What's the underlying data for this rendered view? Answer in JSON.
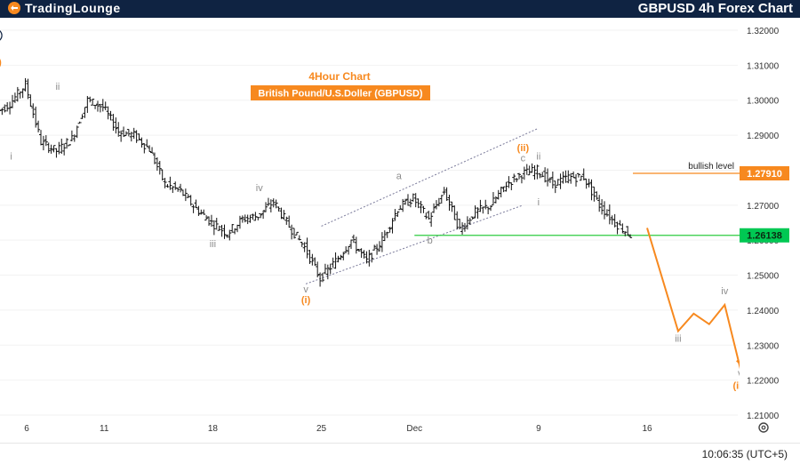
{
  "header": {
    "brand": "TradingLounge",
    "title": "GBPUSD 4h Forex Chart"
  },
  "footer": {
    "time": "10:06:35 (UTC+5)"
  },
  "icons": {
    "logo": "tradinglounge-logo-icon",
    "settings": "gear-icon"
  },
  "colors": {
    "orange": "#f7891f",
    "gray_wave": "#8c8c8c",
    "navy": "#0f2342",
    "support_line": "#2ecc40",
    "support_label": "#00c853"
  },
  "chart_data": {
    "type": "candlestick",
    "symbol": "GBPUSD",
    "timeframe": "4h",
    "annotation_title": "4Hour Chart",
    "annotation_subtitle": "British Pound/U.S.Doller (GBPUSD)",
    "x_ticks": [
      "6",
      "11",
      "18",
      "25",
      "Dec",
      "9",
      "16"
    ],
    "y_ticks": [
      "1.32000",
      "1.31000",
      "1.30000",
      "1.29000",
      "1.28000",
      "1.27000",
      "1.26000",
      "1.25000",
      "1.24000",
      "1.23000",
      "1.22000",
      "1.21000"
    ],
    "ylim": [
      1.2095,
      1.3245
    ],
    "price_points": [
      [
        "Nov 4",
        1.296
      ],
      [
        "Nov 5",
        1.299
      ],
      [
        "Nov 6",
        1.3045
      ],
      [
        "Nov 7",
        1.288
      ],
      [
        "Nov 8",
        1.2855
      ],
      [
        "Nov 9",
        1.289
      ],
      [
        "Nov 10",
        1.3
      ],
      [
        "Nov 11",
        1.298
      ],
      [
        "Nov 12",
        1.291
      ],
      [
        "Nov 13",
        1.29
      ],
      [
        "Nov 14",
        1.286
      ],
      [
        "Nov 15",
        1.276
      ],
      [
        "Nov 16",
        1.274
      ],
      [
        "Nov 17",
        1.269
      ],
      [
        "Nov 18",
        1.265
      ],
      [
        "Nov 19",
        1.262
      ],
      [
        "Nov 20",
        1.266
      ],
      [
        "Nov 21",
        1.267
      ],
      [
        "Nov 22",
        1.271
      ],
      [
        "Nov 23",
        1.264
      ],
      [
        "Nov 24",
        1.258
      ],
      [
        "Nov 25",
        1.249
      ],
      [
        "Nov 26",
        1.254
      ],
      [
        "Nov 27",
        1.26
      ],
      [
        "Nov 28",
        1.254
      ],
      [
        "Nov 29",
        1.26
      ],
      [
        "Nov 30",
        1.269
      ],
      [
        "Dec 1",
        1.272
      ],
      [
        "Dec 2",
        1.266
      ],
      [
        "Dec 3",
        1.274
      ],
      [
        "Dec 4",
        1.263
      ],
      [
        "Dec 5",
        1.268
      ],
      [
        "Dec 6",
        1.27
      ],
      [
        "Dec 7",
        1.276
      ],
      [
        "Dec 8",
        1.279
      ],
      [
        "Dec 9",
        1.28
      ],
      [
        "Dec 10",
        1.276
      ],
      [
        "Dec 11",
        1.278
      ],
      [
        "Dec 12",
        1.278
      ],
      [
        "Dec 13",
        1.27
      ],
      [
        "Dec 14",
        1.265
      ],
      [
        "Dec 15",
        1.2615
      ]
    ],
    "projection": [
      [
        "Dec 16",
        1.2635
      ],
      [
        "Dec 18",
        1.234
      ],
      [
        "Dec 19",
        1.239
      ],
      [
        "Dec 20",
        1.236
      ],
      [
        "Dec 21",
        1.2415
      ],
      [
        "Dec 22",
        1.2235
      ],
      [
        "Dec 23",
        1.226
      ]
    ],
    "channel": {
      "upper": [
        [
          "Nov 25",
          1.264
        ],
        [
          "Dec 9",
          1.292
        ]
      ],
      "lower": [
        [
          "Nov 24",
          1.2475
        ],
        [
          "Dec 8",
          1.27
        ]
      ]
    },
    "levels": [
      {
        "name": "bullish level",
        "value": 1.2791,
        "label": "1.27910",
        "color": "#f7891f"
      },
      {
        "name": "support",
        "value": 1.26138,
        "label": "1.26138",
        "color": "#00c853"
      }
    ],
    "bullish_level_text": "bullish level",
    "wave_labels": [
      {
        "text": "ii",
        "at": [
          "Nov 4",
          1.3175
        ],
        "style": "circled-navy"
      },
      {
        "text": "(c)",
        "at": [
          "Nov 4",
          1.31
        ],
        "style": "orange"
      },
      {
        "text": "ii",
        "at": [
          "Nov 8",
          1.303
        ],
        "style": "gray"
      },
      {
        "text": "i",
        "at": [
          "Nov 5",
          1.283
        ],
        "style": "gray"
      },
      {
        "text": "iv",
        "at": [
          "Nov 21",
          1.274
        ],
        "style": "gray"
      },
      {
        "text": "iii",
        "at": [
          "Nov 18",
          1.258
        ],
        "style": "gray"
      },
      {
        "text": "v",
        "at": [
          "Nov 24",
          1.245
        ],
        "style": "gray"
      },
      {
        "text": "(i)",
        "at": [
          "Nov 24",
          1.242
        ],
        "style": "orange"
      },
      {
        "text": "a",
        "at": [
          "Nov 30",
          1.2775
        ],
        "style": "gray"
      },
      {
        "text": "b",
        "at": [
          "Dec 2",
          1.259
        ],
        "style": "gray"
      },
      {
        "text": "(ii)",
        "at": [
          "Dec 8",
          1.2855
        ],
        "style": "orange"
      },
      {
        "text": "c",
        "at": [
          "Dec 8",
          1.2825
        ],
        "style": "gray"
      },
      {
        "text": "ii",
        "at": [
          "Dec 9",
          1.283
        ],
        "style": "gray"
      },
      {
        "text": "i",
        "at": [
          "Dec 9",
          1.27
        ],
        "style": "gray"
      },
      {
        "text": "iii",
        "at": [
          "Dec 18",
          1.231
        ],
        "style": "gray"
      },
      {
        "text": "iv",
        "at": [
          "Dec 21",
          1.2445
        ],
        "style": "gray"
      },
      {
        "text": "v",
        "at": [
          "Dec 22",
          1.221
        ],
        "style": "gray"
      },
      {
        "text": "(iii)",
        "at": [
          "Dec 22",
          1.2175
        ],
        "style": "orange"
      }
    ]
  }
}
